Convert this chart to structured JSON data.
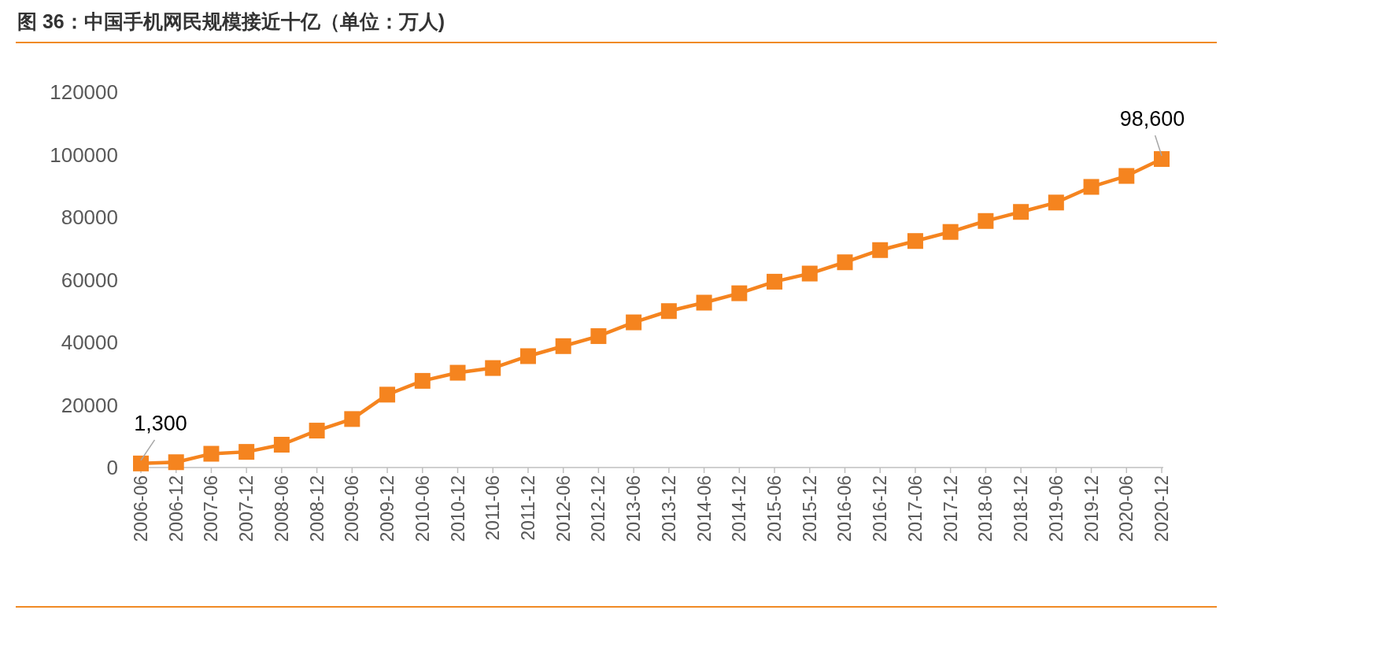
{
  "chart_data": {
    "type": "line",
    "title": "图 36：中国手机网民规模接近十亿（单位：万人)",
    "categories": [
      "2006-06",
      "2006-12",
      "2007-06",
      "2007-12",
      "2008-06",
      "2008-12",
      "2009-06",
      "2009-12",
      "2010-06",
      "2010-12",
      "2011-06",
      "2011-12",
      "2012-06",
      "2012-12",
      "2013-06",
      "2013-12",
      "2014-06",
      "2014-12",
      "2015-06",
      "2015-12",
      "2016-06",
      "2016-12",
      "2017-06",
      "2017-12",
      "2018-06",
      "2018-12",
      "2019-06",
      "2019-12",
      "2020-06",
      "2020-12"
    ],
    "series": [
      {
        "color": "#f5841f",
        "values": [
          1300,
          1700,
          4400,
          5000,
          7300,
          11800,
          15500,
          23300,
          27700,
          30300,
          31800,
          35600,
          38800,
          42000,
          46400,
          50000,
          52700,
          55700,
          59400,
          62000,
          65600,
          69500,
          72400,
          75300,
          78800,
          81700,
          84700,
          89700,
          93200,
          98600
        ],
        "value_labels": [
          "1,300",
          null,
          null,
          null,
          null,
          null,
          null,
          null,
          null,
          null,
          null,
          null,
          null,
          null,
          null,
          null,
          null,
          null,
          null,
          null,
          null,
          null,
          null,
          null,
          null,
          null,
          null,
          null,
          null,
          "98,600"
        ]
      }
    ],
    "ylim": [
      0,
      120000
    ],
    "yticks": [
      0,
      20000,
      40000,
      60000,
      80000,
      100000,
      120000
    ],
    "marker": "square",
    "line_style": "solid",
    "grid": false
  }
}
